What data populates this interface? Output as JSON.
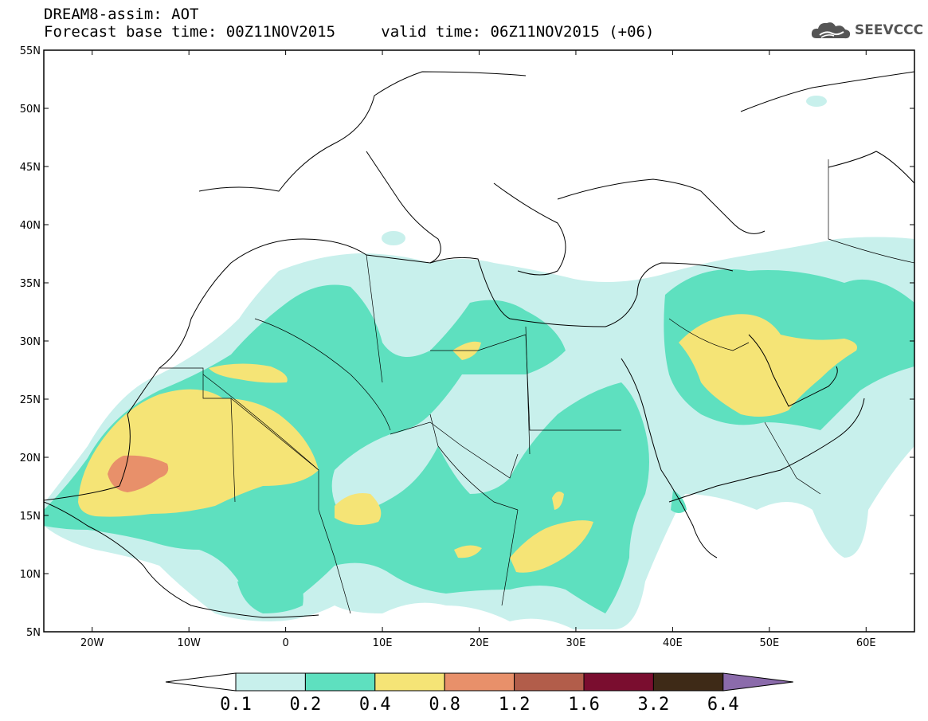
{
  "title": {
    "line1": "DREAM8-assim: AOT",
    "line2_base": "Forecast base time: 00Z11NOV2015",
    "line2_valid": "valid time: 06Z11NOV2015 (+06)"
  },
  "logo": {
    "text": "SEEVCCC",
    "icon": "cloud-icon"
  },
  "map": {
    "lon_range": [
      -25,
      65
    ],
    "lat_range": [
      5,
      55
    ],
    "lat_ticks": [
      "55N",
      "50N",
      "45N",
      "40N",
      "35N",
      "30N",
      "25N",
      "20N",
      "15N",
      "10N",
      "5N"
    ],
    "lon_ticks": [
      "20W",
      "10W",
      "0",
      "10E",
      "20E",
      "30E",
      "40E",
      "50E",
      "60E"
    ]
  },
  "colorbar": {
    "labels": [
      "0.1",
      "0.2",
      "0.4",
      "0.8",
      "1.2",
      "1.6",
      "3.2",
      "6.4"
    ],
    "colors": [
      "#ffffff",
      "#c8f0ec",
      "#5ee0bf",
      "#f5e476",
      "#e8906a",
      "#b25d4a",
      "#7a0d2f",
      "#3e2a17",
      "#8b6bab"
    ]
  },
  "field_colors": {
    "light": "#c8f0ec",
    "medium": "#5ee0bf",
    "yellow": "#f5e476",
    "orange": "#e8906a"
  }
}
